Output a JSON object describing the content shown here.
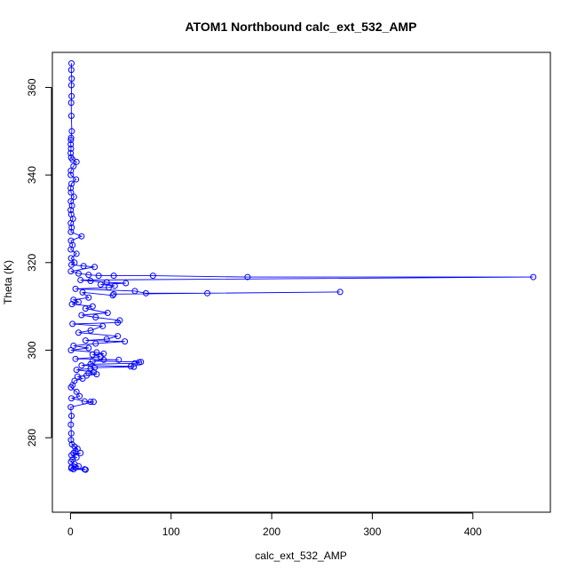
{
  "chart_data": {
    "type": "scatter",
    "title": "ATOM1 Northbound calc_ext_532_AMP",
    "xlabel": "calc_ext_532_AMP",
    "ylabel": "Theta (K)",
    "xlim": [
      -18,
      477
    ],
    "ylim": [
      263,
      368
    ],
    "xticks": [
      0,
      100,
      200,
      300,
      400
    ],
    "yticks": [
      280,
      300,
      320,
      340,
      360
    ],
    "grid": false,
    "legend": "none",
    "series_color": "#0000ff",
    "points": [
      [
        1.0,
        365.5
      ],
      [
        0.8,
        364.0
      ],
      [
        1.2,
        362.0
      ],
      [
        0.9,
        360.5
      ],
      [
        1.1,
        358.0
      ],
      [
        0.7,
        356.5
      ],
      [
        0.9,
        353.5
      ],
      [
        1.3,
        350.0
      ],
      [
        0.6,
        348.5
      ],
      [
        0.4,
        348.0
      ],
      [
        0.3,
        347.0
      ],
      [
        0.5,
        346.0
      ],
      [
        0.2,
        345.0
      ],
      [
        0.6,
        344.0
      ],
      [
        2.0,
        343.5
      ],
      [
        6.0,
        343.0
      ],
      [
        3.0,
        342.0
      ],
      [
        0.4,
        341.0
      ],
      [
        0.3,
        340.0
      ],
      [
        5.5,
        339.0
      ],
      [
        1.0,
        338.0
      ],
      [
        0.2,
        337.0
      ],
      [
        0.5,
        336.0
      ],
      [
        3.5,
        335.0
      ],
      [
        0.3,
        334.0
      ],
      [
        1.5,
        333.0
      ],
      [
        0.2,
        332.0
      ],
      [
        0.8,
        331.0
      ],
      [
        2.5,
        330.0
      ],
      [
        0.3,
        329.0
      ],
      [
        1.2,
        328.0
      ],
      [
        0.4,
        327.0
      ],
      [
        11.0,
        326.0
      ],
      [
        0.5,
        325.0
      ],
      [
        2.0,
        324.0
      ],
      [
        0.3,
        323.0
      ],
      [
        6.0,
        322.0
      ],
      [
        0.6,
        321.0
      ],
      [
        4.0,
        320.0
      ],
      [
        1.0,
        319.5
      ],
      [
        13.0,
        319.2
      ],
      [
        24.0,
        319.0
      ],
      [
        0.4,
        318.0
      ],
      [
        8.0,
        317.5
      ],
      [
        18.0,
        317.2
      ],
      [
        28.0,
        317.0
      ],
      [
        43.0,
        317.0
      ],
      [
        82.0,
        317.0
      ],
      [
        176.0,
        316.7
      ],
      [
        460.0,
        316.7
      ],
      [
        10.0,
        316.0
      ],
      [
        20.0,
        315.8
      ],
      [
        36.0,
        315.5
      ],
      [
        55.0,
        315.3
      ],
      [
        30.0,
        315.0
      ],
      [
        44.0,
        314.7
      ],
      [
        38.0,
        314.3
      ],
      [
        5.0,
        314.0
      ],
      [
        64.0,
        313.5
      ],
      [
        75.0,
        313.0
      ],
      [
        136.0,
        313.0
      ],
      [
        268.0,
        313.3
      ],
      [
        43.0,
        312.8
      ],
      [
        42.0,
        312.5
      ],
      [
        12.0,
        313.2
      ],
      [
        18.0,
        312.0
      ],
      [
        3.0,
        311.5
      ],
      [
        8.0,
        311.0
      ],
      [
        1.5,
        310.5
      ],
      [
        22.0,
        310.0
      ],
      [
        15.0,
        309.5
      ],
      [
        37.0,
        308.5
      ],
      [
        11.0,
        308.0
      ],
      [
        25.0,
        307.5
      ],
      [
        49.0,
        306.8
      ],
      [
        47.0,
        306.3
      ],
      [
        2.0,
        306.0
      ],
      [
        32.0,
        305.5
      ],
      [
        20.0,
        304.5
      ],
      [
        8.0,
        304.0
      ],
      [
        47.0,
        303.2
      ],
      [
        36.0,
        302.5
      ],
      [
        15.0,
        302.2
      ],
      [
        54.0,
        302.0
      ],
      [
        25.0,
        301.5
      ],
      [
        3.0,
        301.0
      ],
      [
        18.0,
        300.5
      ],
      [
        0.5,
        300.0
      ],
      [
        26.0,
        299.5
      ],
      [
        33.0,
        299.2
      ],
      [
        22.0,
        299.0
      ],
      [
        30.0,
        298.5
      ],
      [
        5.0,
        298.0
      ],
      [
        48.0,
        297.8
      ],
      [
        33.0,
        297.8
      ],
      [
        22.0,
        297.5
      ],
      [
        70.0,
        297.3
      ],
      [
        68.0,
        297.2
      ],
      [
        64.0,
        297.0
      ],
      [
        20.0,
        296.8
      ],
      [
        11.0,
        296.5
      ],
      [
        60.0,
        296.3
      ],
      [
        63.0,
        296.2
      ],
      [
        24.0,
        296.0
      ],
      [
        20.0,
        295.8
      ],
      [
        6.0,
        295.5
      ],
      [
        23.0,
        295.0
      ],
      [
        18.0,
        294.8
      ],
      [
        26.0,
        294.5
      ],
      [
        16.0,
        294.2
      ],
      [
        7.0,
        294.0
      ],
      [
        12.0,
        293.5
      ],
      [
        4.0,
        293.0
      ],
      [
        2.0,
        292.0
      ],
      [
        0.5,
        291.5
      ],
      [
        6.0,
        290.5
      ],
      [
        9.0,
        289.5
      ],
      [
        1.0,
        289.0
      ],
      [
        14.0,
        288.3
      ],
      [
        20.0,
        288.2
      ],
      [
        23.0,
        288.2
      ],
      [
        0.3,
        287.0
      ],
      [
        1.0,
        285.0
      ],
      [
        0.4,
        283.0
      ],
      [
        0.8,
        281.0
      ],
      [
        0.5,
        279.5
      ],
      [
        1.5,
        278.5
      ],
      [
        4.0,
        278.0
      ],
      [
        7.0,
        277.5
      ],
      [
        5.0,
        277.0
      ],
      [
        3.0,
        276.5
      ],
      [
        10.0,
        276.5
      ],
      [
        1.0,
        276.0
      ],
      [
        6.0,
        275.5
      ],
      [
        2.0,
        275.0
      ],
      [
        0.5,
        274.5
      ],
      [
        4.0,
        274.0
      ],
      [
        8.0,
        273.5
      ],
      [
        1.0,
        273.3
      ],
      [
        14.0,
        272.8
      ],
      [
        15.0,
        272.7
      ],
      [
        3.0,
        272.8
      ],
      [
        5.0,
        273.2
      ],
      [
        0.8,
        273.0
      ]
    ]
  }
}
